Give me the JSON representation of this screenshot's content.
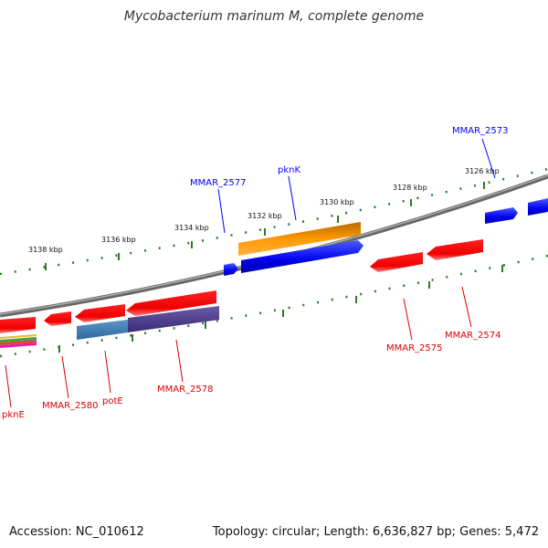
{
  "title": "Mycobacterium marinum M, complete genome",
  "footer": {
    "accession": "Accession: NC_010612",
    "summary": "Topology: circular; Length: 6,636,827 bp; Genes: 5,472"
  },
  "ticks": [
    "3126 kbp",
    "3128 kbp",
    "3130 kbp",
    "3132 kbp",
    "3134 kbp",
    "3136 kbp",
    "3138 kbp"
  ],
  "genes_top": [
    {
      "label": "MMAR_2573",
      "color": "#0000ff"
    },
    {
      "label": "pknK",
      "color": "#0000ff"
    },
    {
      "label": "MMAR_2577",
      "color": "#0000ff"
    }
  ],
  "genes_bottom": [
    {
      "label": "MMAR_2574",
      "color": "#dd0000"
    },
    {
      "label": "MMAR_2575",
      "color": "#dd0000"
    },
    {
      "label": "MMAR_2578",
      "color": "#dd0000"
    },
    {
      "label": "potE",
      "color": "#dd0000"
    },
    {
      "label": "MMAR_2580",
      "color": "#dd0000"
    },
    {
      "label": "pknE",
      "color": "#dd0000"
    }
  ],
  "colors": {
    "backbone": "#888888",
    "tick": "#2a7a2a",
    "forward_gene": "#0000ff",
    "reverse_gene": "#ff0000",
    "feature_orange": "#ff9900",
    "feature_purple": "#4a3a88",
    "feature_teal": "#4682b4"
  }
}
